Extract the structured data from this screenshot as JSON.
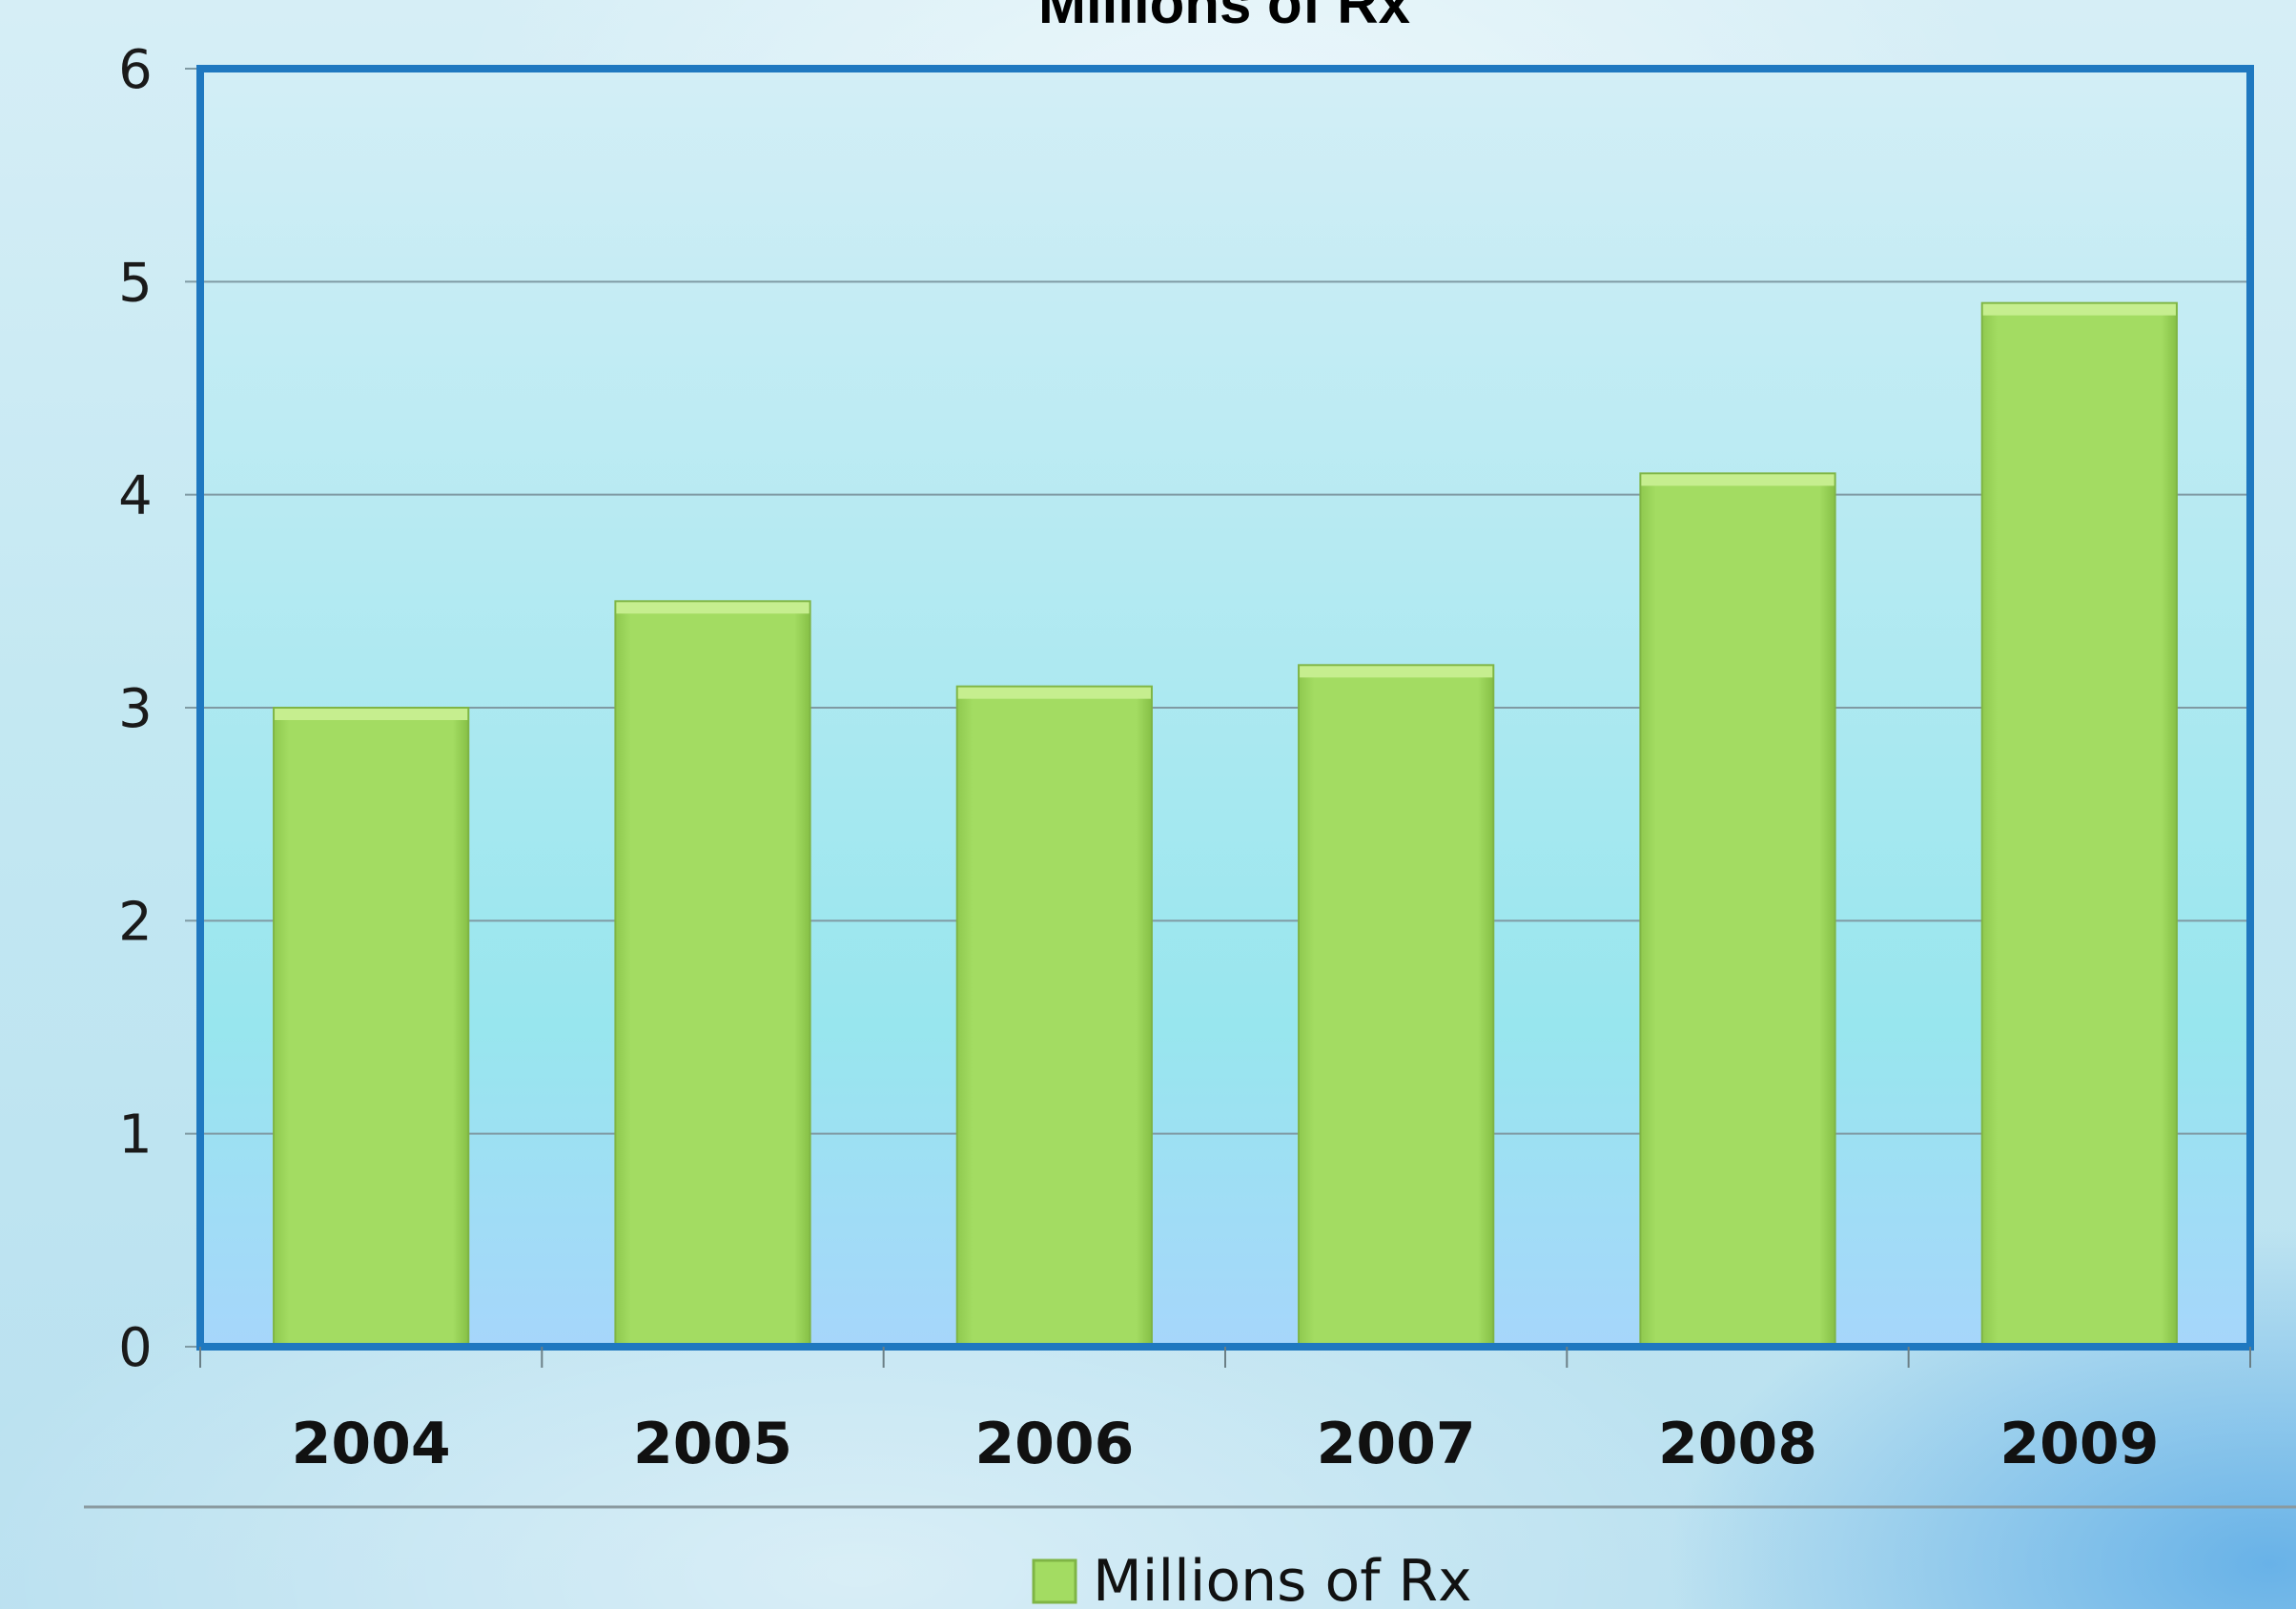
{
  "chart_data": {
    "type": "bar",
    "title": "Millions of Rx",
    "categories": [
      "2004",
      "2005",
      "2006",
      "2007",
      "2008",
      "2009"
    ],
    "series": [
      {
        "name": "Millions of Rx",
        "values": [
          3.0,
          3.5,
          3.1,
          3.2,
          4.1,
          4.9
        ]
      }
    ],
    "y_ticks": [
      "0",
      "1",
      "2",
      "3",
      "4",
      "5",
      "6"
    ],
    "ylim": [
      0,
      6
    ],
    "xlabel": "",
    "ylabel": "",
    "grid": true,
    "legend_position": "bottom",
    "colors": {
      "bar_fill": "#a3dc62",
      "bar_top": "#c6ee8f",
      "bar_edge": "#7fb545",
      "plot_border": "#1f78c0",
      "gridline": "#7f9aa3",
      "plot_top": "#d3eef6",
      "plot_mid": "#98e6ee",
      "plot_bottom": "#a6d6fb"
    }
  }
}
